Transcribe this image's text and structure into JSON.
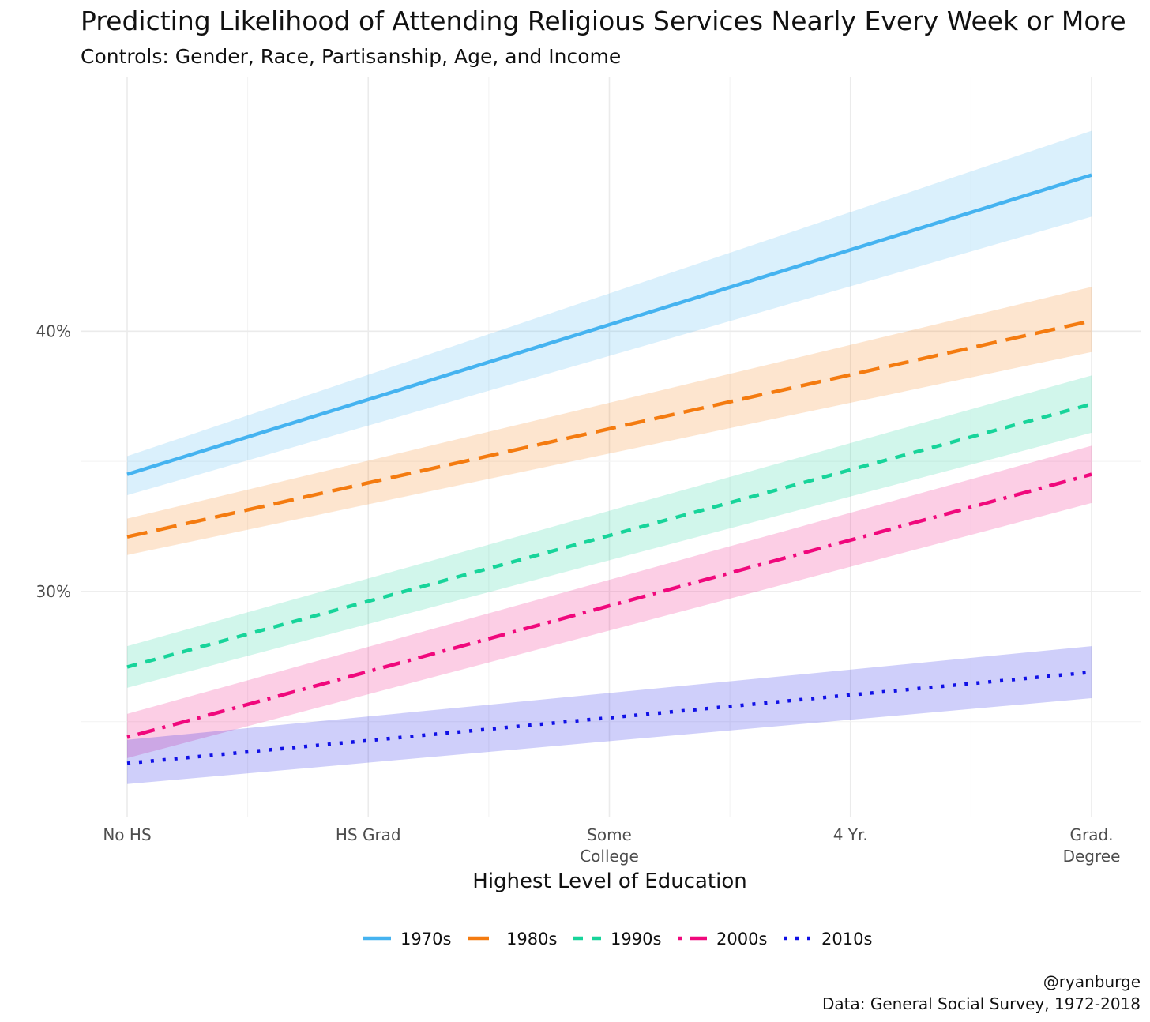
{
  "chart_data": {
    "type": "line",
    "title": "Predicting Likelihood of Attending Religious Services Nearly Every Week or More",
    "subtitle": "Controls: Gender, Race, Partisanship, Age, and Income",
    "xlabel": "Highest Level of Education",
    "ylabel": "",
    "categories": [
      [
        "No HS"
      ],
      [
        "HS Grad"
      ],
      [
        "Some",
        "College"
      ],
      [
        "4 Yr."
      ],
      [
        "Grad.",
        "Degree"
      ]
    ],
    "y_ticks": [
      {
        "value": 0.3,
        "label": "30%"
      },
      {
        "value": 0.4,
        "label": "40%"
      }
    ],
    "ylim": [
      0.2135,
      0.4975
    ],
    "grid": true,
    "legend_position": "bottom",
    "series": [
      {
        "name": "1970s",
        "color": "#45b3f0",
        "line_style": "solid",
        "start": 0.345,
        "end": 0.46,
        "ci_start": [
          0.337,
          0.352
        ],
        "ci_end": [
          0.444,
          0.477
        ]
      },
      {
        "name": "1980s",
        "color": "#f47b10",
        "line_style": "longdash",
        "start": 0.321,
        "end": 0.404,
        "ci_start": [
          0.314,
          0.328
        ],
        "ci_end": [
          0.392,
          0.417
        ]
      },
      {
        "name": "1990s",
        "color": "#17d49a",
        "line_style": "dashed",
        "start": 0.271,
        "end": 0.372,
        "ci_start": [
          0.263,
          0.279
        ],
        "ci_end": [
          0.361,
          0.383
        ]
      },
      {
        "name": "2000s",
        "color": "#f0087c",
        "line_style": "dotdash",
        "start": 0.244,
        "end": 0.345,
        "ci_start": [
          0.236,
          0.253
        ],
        "ci_end": [
          0.334,
          0.356
        ]
      },
      {
        "name": "2010s",
        "color": "#1010e6",
        "line_style": "dotted",
        "start": 0.234,
        "end": 0.269,
        "ci_start": [
          0.226,
          0.243
        ],
        "ci_end": [
          0.259,
          0.279
        ]
      }
    ],
    "caption": [
      "@ryanburge",
      "Data: General Social Survey, 1972-2018"
    ]
  }
}
